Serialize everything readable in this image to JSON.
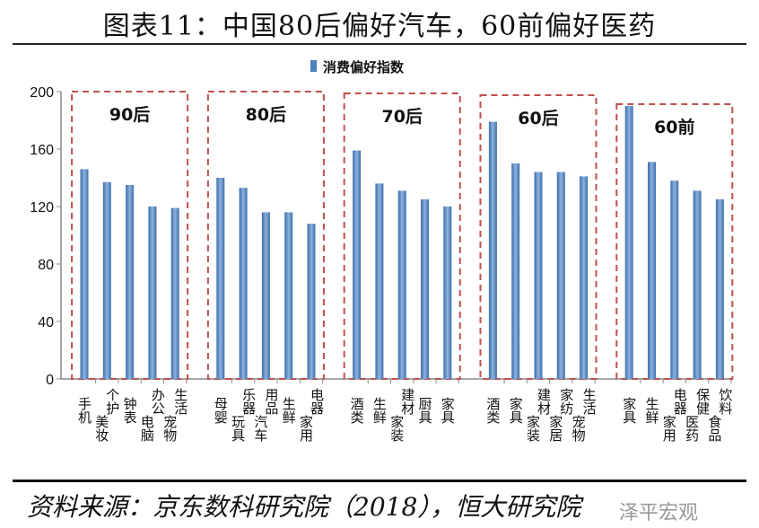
{
  "title": "图表11：中国80后偏好汽车，60前偏好医药",
  "source": "资料来源：京东数科研究院（2018），恒大研究院",
  "watermark": "泽平宏观",
  "chart_data": {
    "type": "bar",
    "legend": "消费偏好指数",
    "legend_position": "top-center",
    "ylim": [
      0,
      200
    ],
    "yticks": [
      0,
      40,
      80,
      120,
      160,
      200
    ],
    "bar_color": "#4F81BD",
    "box_color": "#C0504D",
    "groups": [
      {
        "label": "90后",
        "categories": [
          "手机",
          "美妆个护",
          "钟表",
          "电脑办公",
          "宠物生活"
        ],
        "values": [
          146,
          137,
          135,
          120,
          119
        ]
      },
      {
        "label": "80后",
        "categories": [
          "母婴",
          "玩具乐器",
          "汽车用品",
          "生鲜",
          "家用电器"
        ],
        "values": [
          140,
          133,
          116,
          116,
          108
        ]
      },
      {
        "label": "70后",
        "categories": [
          "酒类",
          "生鲜",
          "家装建材",
          "厨具",
          "家具"
        ],
        "values": [
          159,
          136,
          131,
          125,
          120
        ]
      },
      {
        "label": "60后",
        "categories": [
          "酒类",
          "家具",
          "家装建材",
          "家居家纺",
          "宠物生活"
        ],
        "values": [
          179,
          150,
          144,
          144,
          141
        ]
      },
      {
        "label": "60前",
        "categories": [
          "家具",
          "生鲜",
          "家用电器",
          "医药保健",
          "食品饮料"
        ],
        "values": [
          190,
          151,
          138,
          131,
          125
        ]
      }
    ]
  }
}
